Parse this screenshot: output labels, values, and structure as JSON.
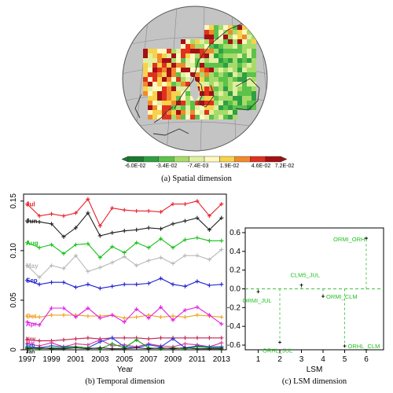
{
  "panel_a": {
    "caption": "(a) Spatial dimension",
    "colorbar": {
      "colors": [
        "#1a7a2e",
        "#2ea043",
        "#5cc24a",
        "#a6db6a",
        "#e0efa0",
        "#fff8c0",
        "#f7d24b",
        "#f08a2c",
        "#e0301e",
        "#a50f15"
      ],
      "labels": [
        "-6.0E-02",
        "-3.4E-02",
        "-7.4E-03",
        "1.9E-02",
        "4.6E-02",
        "7.2E-02"
      ]
    }
  },
  "panel_b": {
    "caption": "(b) Temporal dimension"
  },
  "panel_c": {
    "caption": "(c) LSM dimension"
  },
  "chart_data": [
    {
      "type": "line",
      "xlabel": "Year",
      "ylabel": "",
      "x": [
        1997,
        1998,
        1999,
        2000,
        2001,
        2002,
        2003,
        2004,
        2005,
        2006,
        2007,
        2008,
        2009,
        2010,
        2011,
        2012,
        2013
      ],
      "xticks": [
        1997,
        1999,
        2001,
        2003,
        2005,
        2007,
        2009,
        2011,
        2013
      ],
      "xlim": [
        1996.7,
        2013.4
      ],
      "ylim": [
        0,
        0.157
      ],
      "yticks": [
        0,
        0.05,
        0.1,
        0.15
      ],
      "ytick_labels": [
        "0",
        "0.05",
        "0.10",
        "0.15"
      ],
      "series": [
        {
          "name": "Jul",
          "color": "#e8202a",
          "values": [
            0.147,
            0.135,
            0.137,
            0.135,
            0.138,
            0.152,
            0.125,
            0.143,
            0.141,
            0.14,
            0.14,
            0.139,
            0.147,
            0.147,
            0.15,
            0.135,
            0.147
          ]
        },
        {
          "name": "Jun",
          "color": "#222222",
          "values": [
            0.13,
            0.129,
            0.127,
            0.114,
            0.123,
            0.138,
            0.115,
            0.118,
            0.12,
            0.121,
            0.123,
            0.122,
            0.127,
            0.13,
            0.133,
            0.121,
            0.133
          ]
        },
        {
          "name": "Aug",
          "color": "#18c018",
          "values": [
            0.108,
            0.103,
            0.106,
            0.097,
            0.106,
            0.107,
            0.093,
            0.104,
            0.098,
            0.108,
            0.103,
            0.112,
            0.103,
            0.111,
            0.113,
            0.11,
            0.11
          ]
        },
        {
          "name": "May",
          "color": "#b8b8b8",
          "values": [
            0.085,
            0.073,
            0.085,
            0.082,
            0.095,
            0.079,
            0.083,
            0.088,
            0.094,
            0.085,
            0.09,
            0.093,
            0.087,
            0.095,
            0.095,
            0.091,
            0.101
          ]
        },
        {
          "name": "Sep",
          "color": "#2020d0",
          "values": [
            0.07,
            0.066,
            0.068,
            0.068,
            0.063,
            0.066,
            0.062,
            0.064,
            0.066,
            0.066,
            0.067,
            0.072,
            0.066,
            0.064,
            0.069,
            0.065,
            0.066
          ]
        },
        {
          "name": "Oct",
          "color": "#f0a020",
          "values": [
            0.034,
            0.033,
            0.035,
            0.035,
            0.035,
            0.034,
            0.034,
            0.035,
            0.032,
            0.033,
            0.035,
            0.033,
            0.034,
            0.033,
            0.035,
            0.034,
            0.033
          ]
        },
        {
          "name": "Apr",
          "color": "#e020e0",
          "values": [
            0.028,
            0.025,
            0.042,
            0.042,
            0.033,
            0.042,
            0.032,
            0.035,
            0.028,
            0.041,
            0.032,
            0.043,
            0.03,
            0.04,
            0.043,
            0.035,
            0.026
          ]
        },
        {
          "name": "Nov",
          "color": "#c02050",
          "values": [
            0.01,
            0.009,
            0.009,
            0.01,
            0.011,
            0.012,
            0.011,
            0.012,
            0.012,
            0.012,
            0.011,
            0.012,
            0.012,
            0.012,
            0.012,
            0.012,
            0.012
          ]
        },
        {
          "name": "Mar",
          "color": "#e030a0",
          "values": [
            0.006,
            0.004,
            0.007,
            0.003,
            0.006,
            0.005,
            0.01,
            0.004,
            0.005,
            0.003,
            0.006,
            0.004,
            0.003,
            0.006,
            0.005,
            0.003,
            0.007
          ]
        },
        {
          "name": "Feb",
          "color": "#2040e0",
          "values": [
            0.003,
            0.002,
            0.004,
            0.003,
            0.003,
            0.002,
            0.008,
            0.012,
            0.003,
            0.002,
            0.005,
            0.003,
            0.011,
            0.002,
            0.004,
            0.003,
            0.003
          ]
        },
        {
          "name": "Dec",
          "color": "#10a010",
          "values": [
            0.002,
            0.001,
            0.002,
            0.002,
            0.003,
            0.002,
            0.001,
            0.006,
            0.002,
            0.01,
            0.002,
            0.001,
            0.002,
            0.001,
            0.003,
            0.002,
            0.002
          ]
        },
        {
          "name": "Jan",
          "color": "#202020",
          "values": [
            0.001,
            0.002,
            0.001,
            0.001,
            0.002,
            0.001,
            0.002,
            0.001,
            0.001,
            0.002,
            0.001,
            0.002,
            0.001,
            0.002,
            0.001,
            0.001,
            0.001
          ]
        }
      ]
    },
    {
      "type": "scatter",
      "xlabel": "LSM",
      "ylabel": "",
      "xlim": [
        0.4,
        6.8
      ],
      "ylim": [
        -0.65,
        0.65
      ],
      "xticks": [
        1,
        2,
        3,
        4,
        5,
        6
      ],
      "yticks": [
        -0.6,
        -0.4,
        -0.2,
        0.0,
        0.2,
        0.4,
        0.6
      ],
      "ytick_labels": [
        "-0.6",
        "-0.4",
        "-0.2",
        "0.0",
        "0.2",
        "0.4",
        "0.6"
      ],
      "zero_line": 0,
      "points": [
        {
          "label": "ORMI_JUL",
          "x": 1,
          "y": -0.03
        },
        {
          "label": "ORHL_JUL",
          "x": 2,
          "y": -0.57
        },
        {
          "label": "CLM5_JUL",
          "x": 3,
          "y": 0.04
        },
        {
          "label": "ORMI_CLM",
          "x": 4,
          "y": -0.08
        },
        {
          "label": "ORHL_CLM",
          "x": 5,
          "y": -0.61
        },
        {
          "label": "ORMI_ORH",
          "x": 6,
          "y": 0.54
        }
      ]
    }
  ]
}
